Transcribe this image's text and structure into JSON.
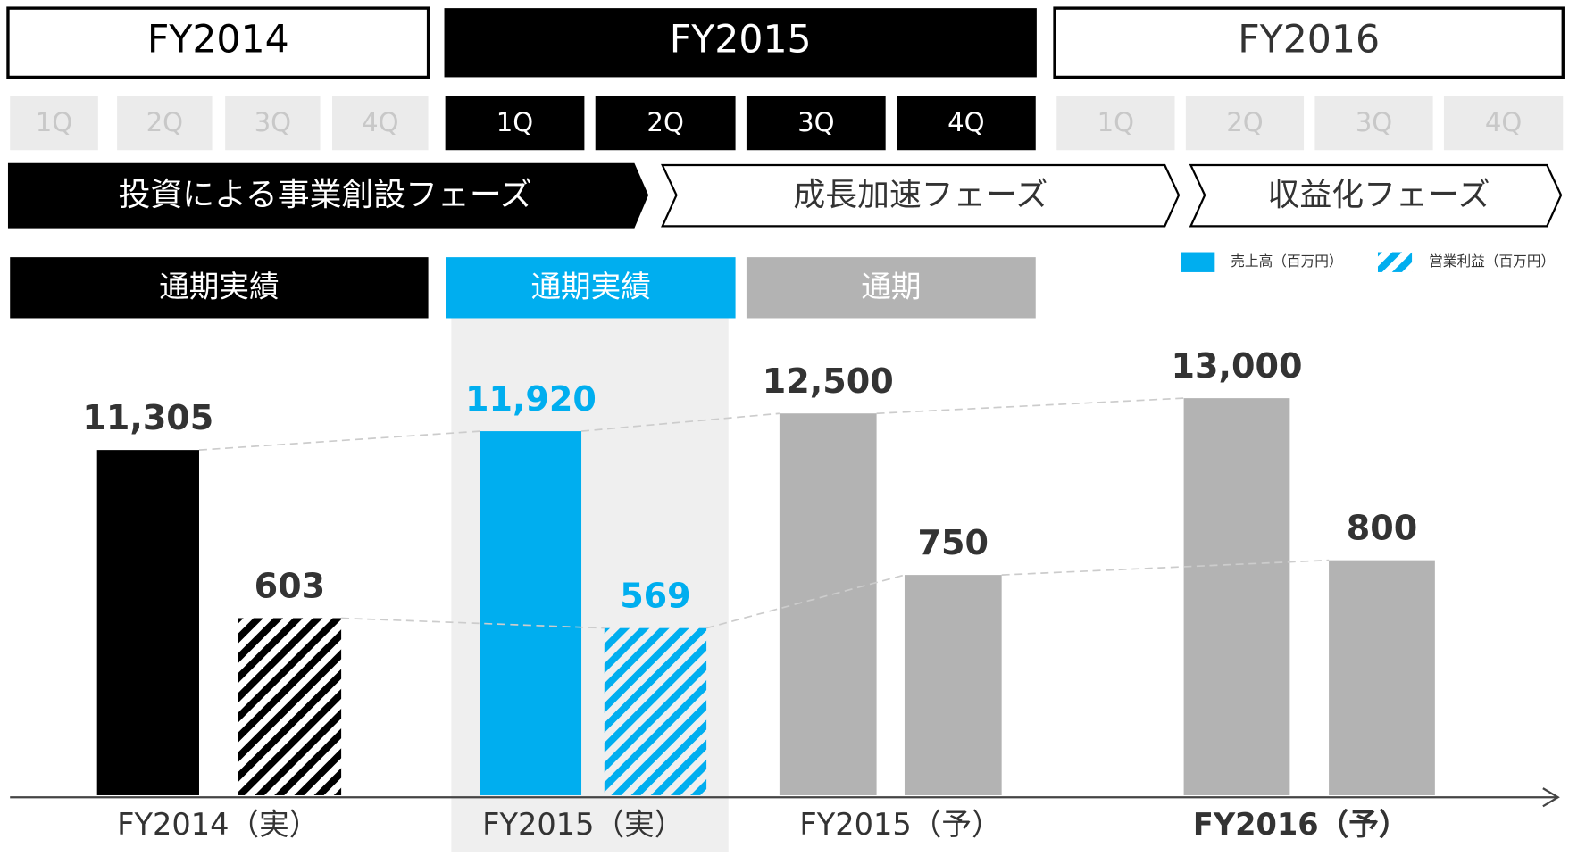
{
  "periods": [
    "FY2014",
    "FY2015",
    "FY2016"
  ],
  "quarters": [
    "1Q",
    "2Q",
    "3Q",
    "4Q",
    "1Q",
    "2Q",
    "3Q",
    "4Q",
    "1Q",
    "2Q",
    "3Q",
    "4Q"
  ],
  "phases": [
    "投資による事業創設フェーズ",
    "成長加速フェーズ",
    "収益化フェーズ"
  ],
  "row_labels": [
    "通期実績",
    "通期実績",
    "通期"
  ],
  "chart_data": {
    "type": "bar",
    "categories": [
      "FY2014（実）",
      "FY2015（実）",
      "FY2015（予）",
      "FY2016（予）"
    ],
    "category_colors": [
      "#000000",
      "#00aeef",
      "#b3b3b3",
      "#b3b3b3"
    ],
    "hatch": [
      true,
      true,
      false,
      false
    ],
    "series": [
      {
        "name": "売上高（百万円）",
        "color": "#00aeef",
        "values": [
          11305,
          11920,
          12500,
          13000
        ],
        "value_labels": [
          "11,305",
          "11,920",
          "12,500",
          "13,000"
        ]
      },
      {
        "name": "営業利益（百万円）",
        "color": "#00aeef",
        "axis": "y2",
        "values": [
          603,
          569,
          750,
          800
        ]
      }
    ]
  }
}
